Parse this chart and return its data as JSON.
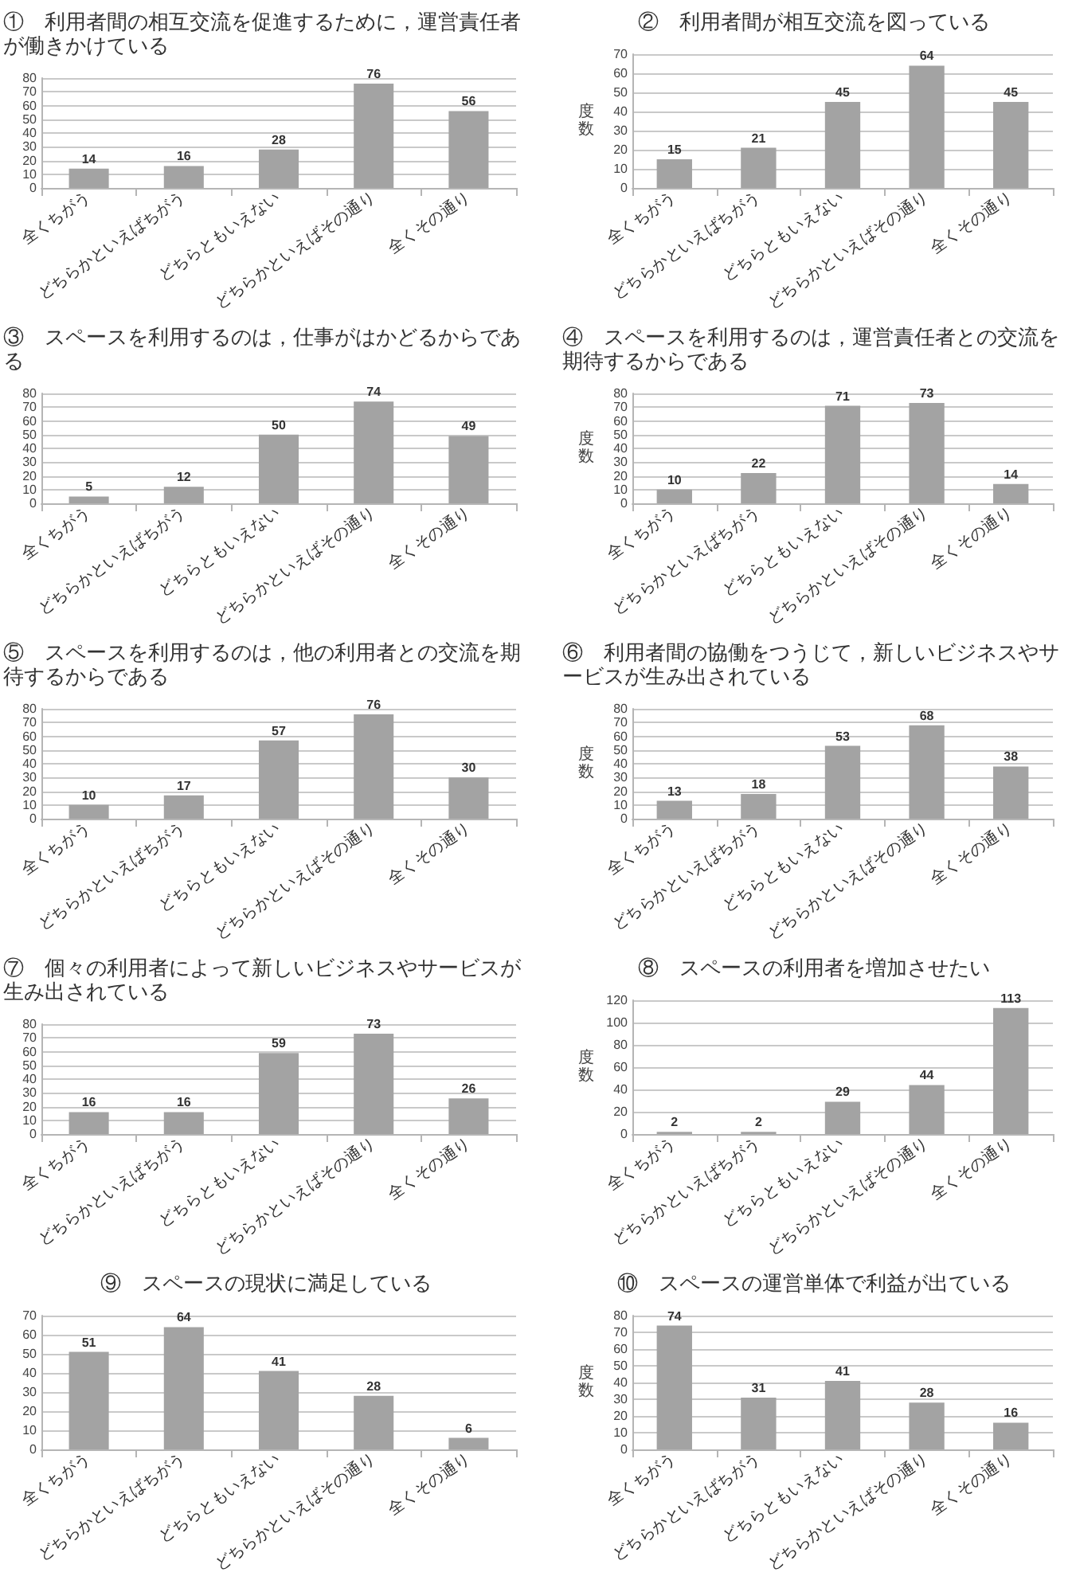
{
  "chart_data": [
    {
      "type": "bar",
      "title": "①　利用者間の相互交流を促進するために，運営責任者が働きかけている",
      "categories": [
        "全くちがう",
        "どちらかといえばちがう",
        "どちらともいえない",
        "どちらかといえばその通り",
        "全くその通り"
      ],
      "values": [
        14,
        16,
        28,
        76,
        56
      ],
      "color": "#a3a3a3",
      "ylim": [
        0,
        80
      ],
      "yticks": [
        0,
        10,
        20,
        30,
        40,
        50,
        60,
        70,
        80
      ],
      "grid": "y",
      "data_labels": true
    },
    {
      "type": "bar",
      "title": "②　利用者間が相互交流を図っている",
      "ylabel": "度数",
      "categories": [
        "全くちがう",
        "どちらかといえばちがう",
        "どちらともいえない",
        "どちらかといえばその通り",
        "全くその通り"
      ],
      "values": [
        15,
        21,
        45,
        64,
        45
      ],
      "color": "#a3a3a3",
      "ylim": [
        0,
        70
      ],
      "yticks": [
        0,
        10,
        20,
        30,
        40,
        50,
        60,
        70
      ],
      "grid": "y",
      "data_labels": true
    },
    {
      "type": "bar",
      "title": "③　スペースを利用するのは，仕事がはかどるからである",
      "categories": [
        "全くちがう",
        "どちらかといえばちがう",
        "どちらともいえない",
        "どちらかといえばその通り",
        "全くその通り"
      ],
      "values": [
        5,
        12,
        50,
        74,
        49
      ],
      "color": "#a3a3a3",
      "ylim": [
        0,
        80
      ],
      "yticks": [
        0,
        10,
        20,
        30,
        40,
        50,
        60,
        70,
        80
      ],
      "grid": "y",
      "data_labels": true
    },
    {
      "type": "bar",
      "title": "④　スペースを利用するのは，運営責任者との交流を期待するからである",
      "ylabel": "度数",
      "categories": [
        "全くちがう",
        "どちらかといえばちがう",
        "どちらともいえない",
        "どちらかといえばその通り",
        "全くその通り"
      ],
      "values": [
        10,
        22,
        71,
        73,
        14
      ],
      "color": "#a3a3a3",
      "ylim": [
        0,
        80
      ],
      "yticks": [
        0,
        10,
        20,
        30,
        40,
        50,
        60,
        70,
        80
      ],
      "grid": "y",
      "data_labels": true
    },
    {
      "type": "bar",
      "title": "⑤　スペースを利用するのは，他の利用者との交流を期待するからである",
      "categories": [
        "全くちがう",
        "どちらかといえばちがう",
        "どちらともいえない",
        "どちらかといえばその通り",
        "全くその通り"
      ],
      "values": [
        10,
        17,
        57,
        76,
        30
      ],
      "color": "#a3a3a3",
      "ylim": [
        0,
        80
      ],
      "yticks": [
        0,
        10,
        20,
        30,
        40,
        50,
        60,
        70,
        80
      ],
      "grid": "y",
      "data_labels": true
    },
    {
      "type": "bar",
      "title": "⑥　利用者間の協働をつうじて，新しいビジネスやサービスが生み出されている",
      "ylabel": "度数",
      "categories": [
        "全くちがう",
        "どちらかといえばちがう",
        "どちらともいえない",
        "どちらかといえばその通り",
        "全くその通り"
      ],
      "values": [
        13,
        18,
        53,
        68,
        38
      ],
      "color": "#a3a3a3",
      "ylim": [
        0,
        80
      ],
      "yticks": [
        0,
        10,
        20,
        30,
        40,
        50,
        60,
        70,
        80
      ],
      "grid": "y",
      "data_labels": true
    },
    {
      "type": "bar",
      "title": "⑦　個々の利用者によって新しいビジネスやサービスが生み出されている",
      "categories": [
        "全くちがう",
        "どちらかといえばちがう",
        "どちらともいえない",
        "どちらかといえばその通り",
        "全くその通り"
      ],
      "values": [
        16,
        16,
        59,
        73,
        26
      ],
      "color": "#a3a3a3",
      "ylim": [
        0,
        80
      ],
      "yticks": [
        0,
        10,
        20,
        30,
        40,
        50,
        60,
        70,
        80
      ],
      "grid": "y",
      "data_labels": true
    },
    {
      "type": "bar",
      "title": "⑧　スペースの利用者を増加させたい",
      "ylabel": "度数",
      "categories": [
        "全くちがう",
        "どちらかといえばちがう",
        "どちらともいえない",
        "どちらかといえばその通り",
        "全くその通り"
      ],
      "values": [
        2,
        2,
        29,
        44,
        113
      ],
      "color": "#a3a3a3",
      "ylim": [
        0,
        120
      ],
      "yticks": [
        0,
        20,
        40,
        60,
        80,
        100,
        120
      ],
      "grid": "y",
      "data_labels": true
    },
    {
      "type": "bar",
      "title": "⑨　スペースの現状に満足している",
      "categories": [
        "全くちがう",
        "どちらかといえばちがう",
        "どちらともいえない",
        "どちらかといえばその通り",
        "全くその通り"
      ],
      "values": [
        51,
        64,
        41,
        28,
        6
      ],
      "color": "#a3a3a3",
      "ylim": [
        0,
        70
      ],
      "yticks": [
        0,
        10,
        20,
        30,
        40,
        50,
        60,
        70
      ],
      "grid": "y",
      "data_labels": true
    },
    {
      "type": "bar",
      "title": "⑩　スペースの運営単体で利益が出ている",
      "ylabel": "度数",
      "categories": [
        "全くちがう",
        "どちらかといえばちがう",
        "どちらともいえない",
        "どちらかといえばその通り",
        "全くその通り"
      ],
      "values": [
        74,
        31,
        41,
        28,
        16
      ],
      "color": "#a3a3a3",
      "ylim": [
        0,
        80
      ],
      "yticks": [
        0,
        10,
        20,
        30,
        40,
        50,
        60,
        70,
        80
      ],
      "grid": "y",
      "data_labels": true
    }
  ]
}
